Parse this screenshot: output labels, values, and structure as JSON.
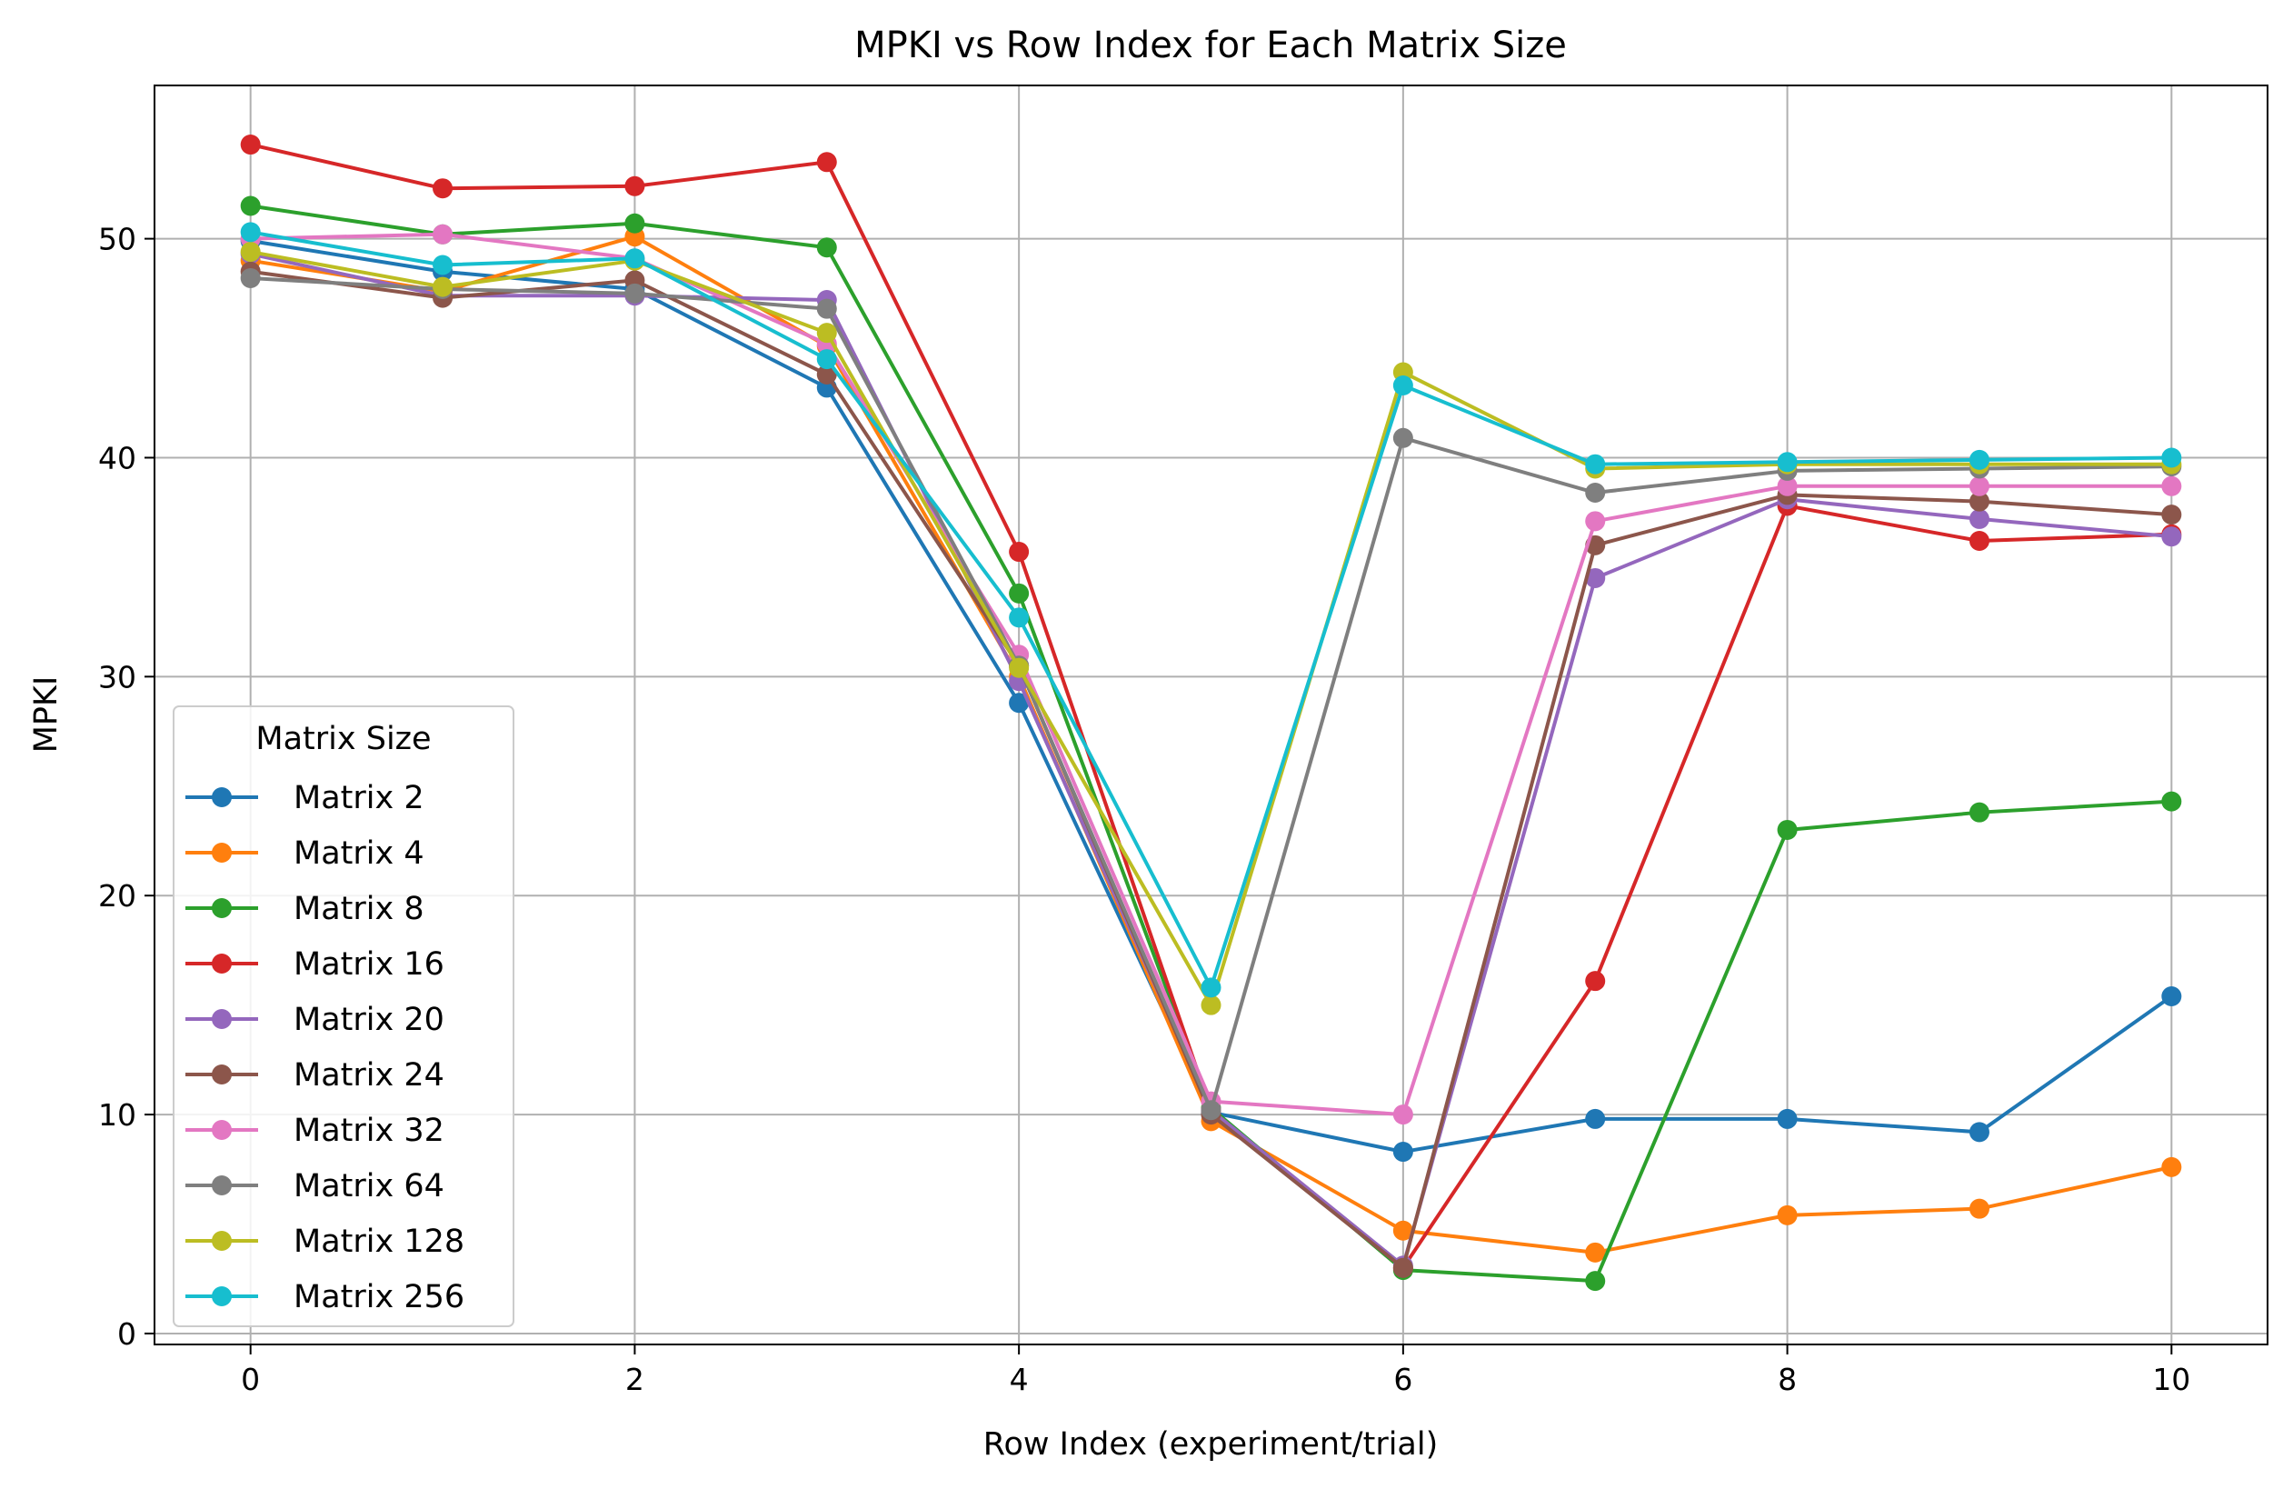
{
  "chart_data": {
    "type": "line",
    "title": "MPKI vs Row Index for Each Matrix Size",
    "xlabel": "Row Index (experiment/trial)",
    "ylabel": "MPKI",
    "xlim": [
      -0.5,
      10.5
    ],
    "ylim": [
      -0.5,
      57
    ],
    "x_ticks": [
      0,
      2,
      4,
      6,
      8,
      10
    ],
    "y_ticks": [
      0,
      10,
      20,
      30,
      40,
      50
    ],
    "grid": true,
    "legend_title": "Matrix Size",
    "legend_position": "lower-left",
    "x": [
      0,
      1,
      2,
      3,
      4,
      5,
      6,
      7,
      8,
      9,
      10
    ],
    "series": [
      {
        "name": "Matrix 2",
        "color": "#1f77b4",
        "values": [
          49.9,
          48.5,
          47.7,
          43.2,
          28.8,
          10.1,
          8.3,
          9.8,
          9.8,
          9.2,
          15.4
        ]
      },
      {
        "name": "Matrix 4",
        "color": "#ff7f0e",
        "values": [
          49.0,
          47.6,
          50.1,
          45.1,
          30.0,
          9.7,
          4.7,
          3.7,
          5.4,
          5.7,
          7.6
        ]
      },
      {
        "name": "Matrix 8",
        "color": "#2ca02c",
        "values": [
          51.5,
          50.2,
          50.7,
          49.6,
          33.8,
          10.3,
          2.9,
          2.4,
          23.0,
          23.8,
          24.3
        ]
      },
      {
        "name": "Matrix 16",
        "color": "#d62728",
        "values": [
          54.3,
          52.3,
          52.4,
          53.5,
          35.7,
          10.2,
          3.0,
          16.1,
          37.8,
          36.2,
          36.5
        ]
      },
      {
        "name": "Matrix 20",
        "color": "#9467bd",
        "values": [
          49.3,
          47.4,
          47.4,
          47.2,
          29.8,
          10.2,
          3.1,
          34.5,
          38.1,
          37.2,
          36.4
        ]
      },
      {
        "name": "Matrix 24",
        "color": "#8c564b",
        "values": [
          48.5,
          47.3,
          48.1,
          43.8,
          30.5,
          10.0,
          3.0,
          36.0,
          38.3,
          38.0,
          37.4
        ]
      },
      {
        "name": "Matrix 32",
        "color": "#e377c2",
        "values": [
          50.0,
          50.2,
          49.1,
          45.2,
          31.0,
          10.6,
          10.0,
          37.1,
          38.7,
          38.7,
          38.7
        ]
      },
      {
        "name": "Matrix 64",
        "color": "#7f7f7f",
        "values": [
          48.2,
          47.7,
          47.5,
          46.8,
          30.5,
          10.2,
          40.9,
          38.4,
          39.4,
          39.5,
          39.6
        ]
      },
      {
        "name": "Matrix 128",
        "color": "#bcbd22",
        "values": [
          49.4,
          47.8,
          49.0,
          45.7,
          30.4,
          15.0,
          43.9,
          39.5,
          39.7,
          39.7,
          39.7
        ]
      },
      {
        "name": "Matrix 256",
        "color": "#17becf",
        "values": [
          50.3,
          48.8,
          49.1,
          44.5,
          32.7,
          15.8,
          43.3,
          39.7,
          39.8,
          39.9,
          40.0
        ]
      }
    ]
  }
}
